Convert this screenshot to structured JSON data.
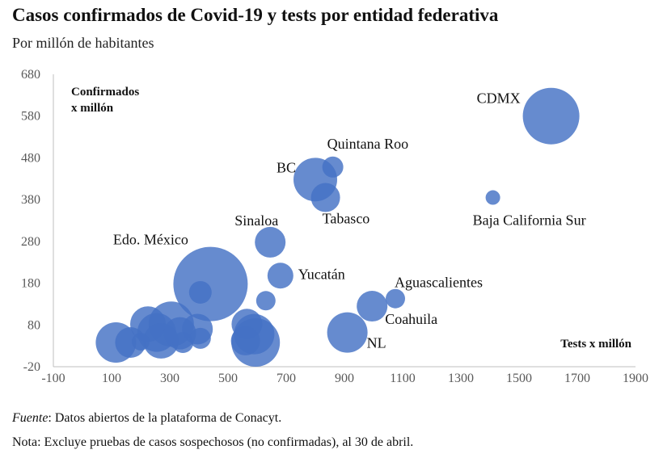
{
  "title": "Casos confirmados de Covid-19 y tests por entidad federativa",
  "subtitle": "Por millón de habitantes",
  "footer": {
    "source_label": "Fuente",
    "source_text": ": Datos abiertos de la plataforma de Conacyt.",
    "note": "Nota: Excluye pruebas de casos sospechosos (no confirmadas), al 30 de abril."
  },
  "colors": {
    "bubble": "#4472C4",
    "axis": "#bfbfbf",
    "text": "#111111",
    "tick": "#595959"
  },
  "chart_data": {
    "type": "scatter",
    "title": "Casos confirmados de Covid-19 y tests por entidad federativa",
    "subtitle": "Por millón de habitantes",
    "xlabel": "Tests x millón",
    "ylabel": "Confirmados x millón",
    "xlim": [
      -100,
      1900
    ],
    "ylim": [
      -20,
      680
    ],
    "xticks": [
      -100,
      100,
      300,
      500,
      700,
      900,
      1100,
      1300,
      1500,
      1700,
      1900
    ],
    "yticks": [
      -20,
      80,
      180,
      280,
      380,
      480,
      580,
      680
    ],
    "grid": false,
    "points": [
      {
        "label": "CDMX",
        "x": 1610,
        "y": 580,
        "r": 35
      },
      {
        "label": "Baja California Sur",
        "x": 1410,
        "y": 385,
        "r": 9
      },
      {
        "label": "Quintana Roo",
        "x": 860,
        "y": 458,
        "r": 13
      },
      {
        "label": "BC",
        "x": 800,
        "y": 428,
        "r": 27
      },
      {
        "label": "Tabasco",
        "x": 835,
        "y": 385,
        "r": 18
      },
      {
        "label": "Sinaloa",
        "x": 645,
        "y": 278,
        "r": 19
      },
      {
        "label": "Yucatán",
        "x": 680,
        "y": 198,
        "r": 16
      },
      {
        "label": "Edo. México",
        "x": 440,
        "y": 178,
        "r": 46
      },
      {
        "label": "Aguascalientes",
        "x": 1075,
        "y": 143,
        "r": 12
      },
      {
        "label": "Coahuila",
        "x": 995,
        "y": 125,
        "r": 19
      },
      {
        "label": "NL",
        "x": 910,
        "y": 62,
        "r": 25
      },
      {
        "label": "",
        "x": 405,
        "y": 158,
        "r": 14
      },
      {
        "label": "",
        "x": 630,
        "y": 138,
        "r": 12
      },
      {
        "label": "",
        "x": 115,
        "y": 38,
        "r": 25
      },
      {
        "label": "",
        "x": 165,
        "y": 38,
        "r": 19
      },
      {
        "label": "",
        "x": 225,
        "y": 82,
        "r": 22
      },
      {
        "label": "",
        "x": 255,
        "y": 62,
        "r": 24
      },
      {
        "label": "",
        "x": 270,
        "y": 42,
        "r": 22
      },
      {
        "label": "",
        "x": 305,
        "y": 82,
        "r": 28
      },
      {
        "label": "",
        "x": 335,
        "y": 60,
        "r": 20
      },
      {
        "label": "",
        "x": 345,
        "y": 38,
        "r": 13
      },
      {
        "label": "",
        "x": 395,
        "y": 70,
        "r": 19
      },
      {
        "label": "",
        "x": 405,
        "y": 48,
        "r": 13
      },
      {
        "label": "",
        "x": 200,
        "y": 40,
        "r": 11
      },
      {
        "label": "",
        "x": 565,
        "y": 82,
        "r": 19
      },
      {
        "label": "",
        "x": 560,
        "y": 42,
        "r": 18
      },
      {
        "label": "",
        "x": 590,
        "y": 58,
        "r": 25
      },
      {
        "label": "",
        "x": 595,
        "y": 38,
        "r": 30
      }
    ]
  }
}
